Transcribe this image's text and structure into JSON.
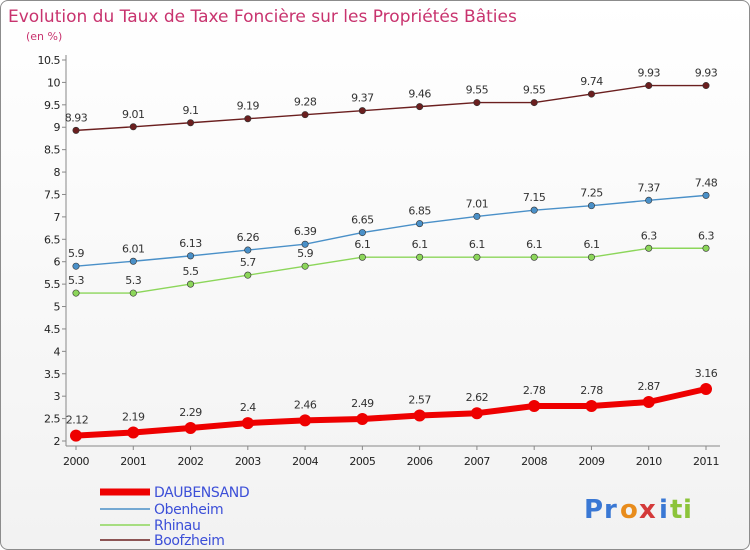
{
  "chart_data": {
    "type": "line",
    "title": "Evolution du Taux de Taxe Foncière sur les Propriétés Bâties",
    "subtitle": "(en %)",
    "x": [
      "2000",
      "2001",
      "2002",
      "2003",
      "2004",
      "2005",
      "2006",
      "2007",
      "2008",
      "2009",
      "2010",
      "2011"
    ],
    "ylim": [
      2,
      10.5
    ],
    "yticks": [
      "2",
      "2.5",
      "3",
      "3.5",
      "4",
      "4.5",
      "5",
      "5.5",
      "6",
      "6.5",
      "7",
      "7.5",
      "8",
      "8.5",
      "9",
      "9.5",
      "10",
      "10.5"
    ],
    "grid": false,
    "series": [
      {
        "name": "DAUBENSAND",
        "color": "#ee0000",
        "values": [
          2.12,
          2.19,
          2.29,
          2.4,
          2.46,
          2.49,
          2.57,
          2.62,
          2.78,
          2.78,
          2.87,
          3.16
        ],
        "labels": [
          "2.12",
          "2.19",
          "2.29",
          "2.4",
          "2.46",
          "2.49",
          "2.57",
          "2.62",
          "2.78",
          "2.78",
          "2.87",
          "3.16"
        ]
      },
      {
        "name": "Obenheim",
        "color": "#4a90c8",
        "values": [
          5.9,
          6.01,
          6.13,
          6.26,
          6.39,
          6.65,
          6.85,
          7.01,
          7.15,
          7.25,
          7.37,
          7.48
        ],
        "labels": [
          "5.9",
          "6.01",
          "6.13",
          "6.26",
          "6.39",
          "6.65",
          "6.85",
          "7.01",
          "7.15",
          "7.25",
          "7.37",
          "7.48"
        ]
      },
      {
        "name": "Rhinau",
        "color": "#8cd65a",
        "values": [
          5.3,
          5.3,
          5.5,
          5.7,
          5.9,
          6.1,
          6.1,
          6.1,
          6.1,
          6.1,
          6.3,
          6.3
        ],
        "labels": [
          "5.3",
          "5.3",
          "5.5",
          "5.7",
          "5.9",
          "6.1",
          "6.1",
          "6.1",
          "6.1",
          "6.1",
          "6.3",
          "6.3"
        ]
      },
      {
        "name": "Boofzheim",
        "color": "#6b1f1f",
        "values": [
          8.93,
          9.01,
          9.1,
          9.19,
          9.28,
          9.37,
          9.46,
          9.55,
          9.55,
          9.74,
          9.93,
          9.93
        ],
        "labels": [
          "8.93",
          "9.01",
          "9.1",
          "9.19",
          "9.28",
          "9.37",
          "9.46",
          "9.55",
          "9.55",
          "9.74",
          "9.93",
          "9.93"
        ]
      }
    ]
  },
  "logo": {
    "text": "Proxiti",
    "letters": [
      "P",
      "r",
      "o",
      "x",
      "i",
      "t",
      "i"
    ],
    "colors": [
      "#3a78d4",
      "#3a78d4",
      "#e88c1c",
      "#d43a3a",
      "#3a78d4",
      "#8cc43a",
      "#8cc43a"
    ]
  }
}
